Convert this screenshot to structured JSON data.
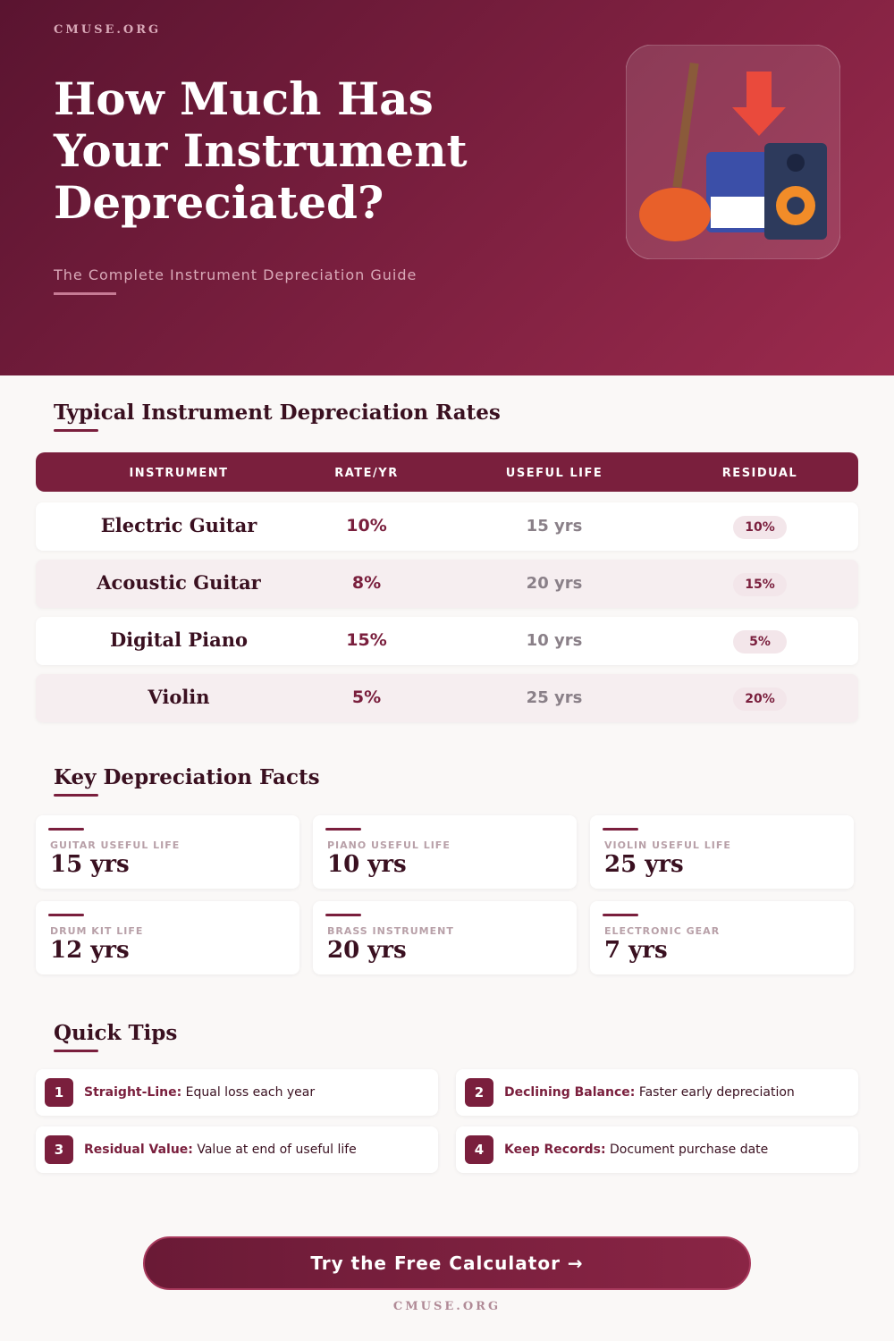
{
  "header": {
    "brand": "CMUSE.ORG",
    "title": "How Much Has Your Instrument Depreciated?",
    "subtitle": "The Complete Instrument Depreciation Guide"
  },
  "table": {
    "title": "Typical Instrument Depreciation Rates",
    "columns": [
      "INSTRUMENT",
      "RATE/YR",
      "USEFUL LIFE",
      "RESIDUAL"
    ],
    "rows": [
      [
        "Electric Guitar",
        "10%",
        "15 yrs",
        "10%"
      ],
      [
        "Acoustic Guitar",
        "8%",
        "20 yrs",
        "15%"
      ],
      [
        "Digital Piano",
        "15%",
        "10 yrs",
        "5%"
      ],
      [
        "Violin",
        "5%",
        "25 yrs",
        "20%"
      ]
    ]
  },
  "facts": {
    "title": "Key Depreciation Facts",
    "items": [
      {
        "label": "GUITAR USEFUL LIFE",
        "value": "15 yrs"
      },
      {
        "label": "PIANO USEFUL LIFE",
        "value": "10 yrs"
      },
      {
        "label": "VIOLIN USEFUL LIFE",
        "value": "25 yrs"
      },
      {
        "label": "DRUM KIT LIFE",
        "value": "12 yrs"
      },
      {
        "label": "BRASS INSTRUMENT",
        "value": "20 yrs"
      },
      {
        "label": "ELECTRONIC GEAR",
        "value": "7 yrs"
      }
    ]
  },
  "tips": {
    "title": "Quick Tips",
    "items": [
      {
        "number": "1",
        "term": "Straight-Line:",
        "text": "Equal loss each year"
      },
      {
        "number": "2",
        "term": "Declining Balance:",
        "text": "Faster early depreciation"
      },
      {
        "number": "3",
        "term": "Residual Value:",
        "text": "Value at end of useful life"
      },
      {
        "number": "4",
        "term": "Keep Records:",
        "text": "Document purchase date"
      }
    ]
  },
  "cta": {
    "button": "Try the Free Calculator →",
    "footer": "CMUSE.ORG"
  }
}
